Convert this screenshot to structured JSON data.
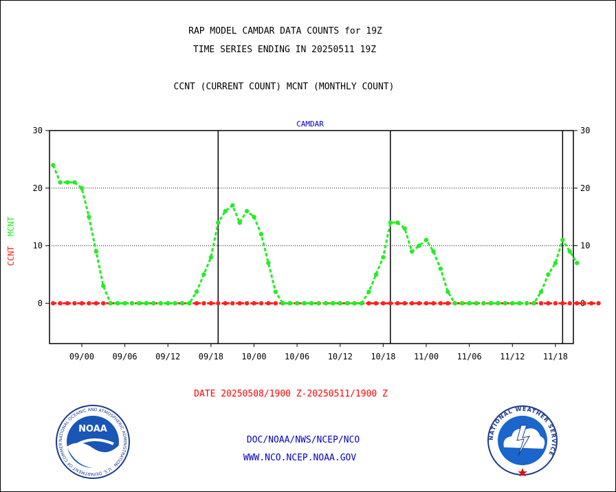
{
  "header": {
    "title_line1": "RAP MODEL CAMDAR DATA COUNTS for 19Z",
    "title_line2": "TIME SERIES ENDING IN 20250511 19Z",
    "subtitle": "CCNT (CURRENT COUNT) MCNT (MONTHLY COUNT)"
  },
  "footer": {
    "date_range": "DATE 20250508/1900 Z-20250511/1900 Z",
    "agency": "DOC/NOAA/NWS/NCEP/NCO",
    "website": "WWW.NCO.NCEP.NOAA.GOV",
    "noaa_logo_text": "NOAA",
    "noaa_ring_text": "NATIONAL OCEANIC AND ATMOSPHERIC ADMINISTRATION · U.S. DEPARTMENT OF COMMERCE ·",
    "nws_ring_text": "NATIONAL WEATHER SERVICE"
  },
  "colors": {
    "ccnt": "#ff2020",
    "mcnt": "#22ee22",
    "title_blue": "#0000cc",
    "footer_red": "#ff0000",
    "footer_blue": "#0000cc"
  },
  "chart_data": {
    "type": "line",
    "title": "CAMDAR",
    "ylabel_series": [
      "CCNT",
      "MCNT"
    ],
    "ylim": [
      -7,
      30
    ],
    "yticks": [
      0,
      10,
      20,
      30
    ],
    "xlim": [
      -4.5,
      68.5
    ],
    "x_tick_labels": [
      {
        "x": 0,
        "label": "09/00"
      },
      {
        "x": 6,
        "label": "09/06"
      },
      {
        "x": 12,
        "label": "09/12"
      },
      {
        "x": 18,
        "label": "09/18"
      },
      {
        "x": 24,
        "label": "10/00"
      },
      {
        "x": 30,
        "label": "10/06"
      },
      {
        "x": 36,
        "label": "10/12"
      },
      {
        "x": 42,
        "label": "10/18"
      },
      {
        "x": 48,
        "label": "11/00"
      },
      {
        "x": 54,
        "label": "11/06"
      },
      {
        "x": 60,
        "label": "11/12"
      },
      {
        "x": 66,
        "label": "11/18"
      }
    ],
    "day_boundaries": [
      19,
      43,
      67
    ],
    "gridlines_y": [
      10,
      20
    ],
    "series": [
      {
        "name": "CCNT",
        "values": [
          0,
          0,
          0,
          0,
          0,
          0,
          0,
          0,
          0,
          0,
          0,
          0,
          0,
          0,
          0,
          0,
          0,
          0,
          0,
          0,
          0,
          0,
          0,
          0,
          0,
          0,
          0,
          0,
          0,
          0,
          0,
          0,
          0,
          0,
          0,
          0,
          0,
          0,
          0,
          0,
          0,
          0,
          0,
          0,
          0,
          0,
          0,
          0,
          0,
          0,
          0,
          0,
          0,
          0,
          0,
          0,
          0,
          0,
          0,
          0,
          0,
          0,
          0,
          0,
          0,
          0,
          0,
          0,
          0,
          0,
          0,
          0,
          0,
          0,
          0,
          0,
          0
        ]
      },
      {
        "name": "MCNT",
        "values": [
          24,
          21,
          21,
          21,
          20,
          15,
          9,
          3,
          0,
          0,
          0,
          0,
          0,
          0,
          0,
          0,
          0,
          0,
          0,
          0,
          2,
          5,
          8,
          14,
          16,
          17,
          14,
          16,
          15,
          12,
          7,
          2,
          0,
          0,
          0,
          0,
          0,
          0,
          0,
          0,
          0,
          0,
          0,
          0,
          2,
          5,
          8,
          14,
          14,
          13,
          9,
          10,
          11,
          9,
          6,
          2,
          0,
          0,
          0,
          0,
          0,
          0,
          0,
          0,
          0,
          0,
          0,
          0,
          2,
          5,
          7,
          11,
          9,
          7
        ]
      }
    ]
  }
}
